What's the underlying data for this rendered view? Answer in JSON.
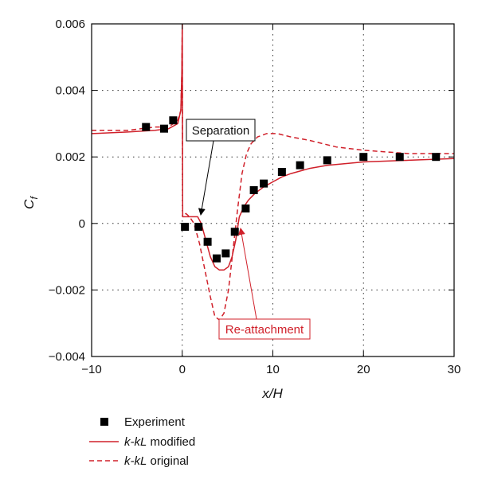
{
  "chart_data": {
    "type": "line",
    "xlabel": "x/H",
    "ylabel_main": "C",
    "ylabel_sub": "f",
    "xlim": [
      -10,
      30
    ],
    "ylim": [
      -0.004,
      0.006
    ],
    "x_ticks": [
      -10,
      0,
      10,
      20,
      30
    ],
    "x_tick_labels": [
      "−10",
      "0",
      "10",
      "20",
      "30"
    ],
    "y_ticks": [
      -0.004,
      -0.002,
      0,
      0.002,
      0.004,
      0.006
    ],
    "y_tick_labels": [
      "−0.004",
      "−0.002",
      "0",
      "0.002",
      "0.004",
      "0.006"
    ],
    "grid": "dotted",
    "series": [
      {
        "name": "Experiment",
        "style": "markers",
        "color": "#000000",
        "x": [
          -4,
          -2,
          -1,
          0.3,
          1.8,
          2.8,
          3.8,
          4.8,
          5.8,
          7,
          7.9,
          9,
          11,
          13,
          16,
          20,
          24,
          28
        ],
        "y": [
          0.0029,
          0.00285,
          0.0031,
          -0.0001,
          -0.0001,
          -0.00055,
          -0.00105,
          -0.0009,
          -0.00025,
          0.00045,
          0.001,
          0.0012,
          0.00155,
          0.00175,
          0.0019,
          0.002,
          0.002,
          0.002
        ]
      },
      {
        "name": "k-kL modified",
        "legend_label": [
          "k-kL",
          " modified"
        ],
        "style": "solid",
        "color": "#d0202a",
        "x": [
          -10,
          -6,
          -3,
          -1.5,
          -0.5,
          -0.15,
          -0.05,
          0,
          0.05,
          0.2,
          0.5,
          0.9,
          1.3,
          1.7,
          2.1,
          2.6,
          3.1,
          3.6,
          4.1,
          4.6,
          5.1,
          5.5,
          5.9,
          6.3,
          6.8,
          7.3,
          8,
          9,
          10,
          11,
          12,
          14,
          16,
          20,
          25,
          30
        ],
        "y": [
          0.0027,
          0.00275,
          0.0028,
          0.00285,
          0.003,
          0.0034,
          0.0045,
          0.006,
          0.0002,
          0.0002,
          0.0002,
          0.0002,
          0.0002,
          0.0002,
          0.0,
          -0.0005,
          -0.001,
          -0.0013,
          -0.0014,
          -0.0014,
          -0.0013,
          -0.001,
          -0.0005,
          0.0002,
          0.0005,
          0.0007,
          0.0009,
          0.0011,
          0.00125,
          0.0014,
          0.0015,
          0.00165,
          0.00175,
          0.00185,
          0.0019,
          0.00195
        ]
      },
      {
        "name": "k-kL original",
        "legend_label": [
          "k-kL",
          " original"
        ],
        "style": "dashed",
        "color": "#d0202a",
        "x": [
          -10,
          -6,
          -3,
          -1.5,
          -0.5,
          -0.15,
          -0.05,
          0,
          0.05,
          0.4,
          0.8,
          1.3,
          1.9,
          2.5,
          3.1,
          3.6,
          4.1,
          4.6,
          5.1,
          5.6,
          6.1,
          6.6,
          7.1,
          7.6,
          8.3,
          9.3,
          10.5,
          12,
          14,
          17,
          20,
          25,
          30
        ],
        "y": [
          0.0028,
          0.0028,
          0.0029,
          0.0029,
          0.0031,
          0.0034,
          0.0045,
          0.006,
          0.0002,
          0.0003,
          0.0002,
          0.0,
          -0.0006,
          -0.0014,
          -0.0022,
          -0.0028,
          -0.0029,
          -0.0027,
          -0.002,
          -0.0008,
          0.0004,
          0.0015,
          0.0021,
          0.0024,
          0.0026,
          0.0027,
          0.0027,
          0.0026,
          0.0025,
          0.0023,
          0.0022,
          0.0021,
          0.0021
        ]
      }
    ],
    "annotations": [
      {
        "text": "Separation",
        "color": "#000000",
        "arrow_to": [
          2,
          0.0001
        ]
      },
      {
        "text": "Re-attachment",
        "color": "#d0202a",
        "arrow_to": [
          6.2,
          -0.0002
        ]
      }
    ]
  },
  "legend": {
    "experiment": "Experiment",
    "modified_italic": "k-kL",
    "modified_rest": " modified",
    "original_italic": "k-kL",
    "original_rest": " original"
  }
}
